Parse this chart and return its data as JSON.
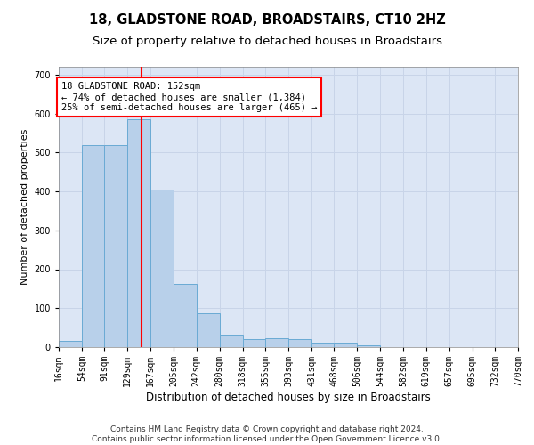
{
  "title": "18, GLADSTONE ROAD, BROADSTAIRS, CT10 2HZ",
  "subtitle": "Size of property relative to detached houses in Broadstairs",
  "xlabel": "Distribution of detached houses by size in Broadstairs",
  "ylabel": "Number of detached properties",
  "bin_edges": [
    16,
    54,
    91,
    129,
    167,
    205,
    242,
    280,
    318,
    355,
    393,
    431,
    468,
    506,
    544,
    582,
    619,
    657,
    695,
    732,
    770
  ],
  "bin_heights": [
    15,
    520,
    520,
    585,
    405,
    163,
    87,
    32,
    20,
    22,
    20,
    12,
    12,
    5,
    0,
    0,
    0,
    0,
    0,
    0
  ],
  "bar_color": "#b8d0ea",
  "bar_edge_color": "#6aaad4",
  "bar_edge_width": 0.7,
  "property_size": 152,
  "property_line_color": "red",
  "annotation_text": "18 GLADSTONE ROAD: 152sqm\n← 74% of detached houses are smaller (1,384)\n25% of semi-detached houses are larger (465) →",
  "annotation_box_color": "white",
  "annotation_box_edge_color": "red",
  "ylim": [
    0,
    720
  ],
  "yticks": [
    0,
    100,
    200,
    300,
    400,
    500,
    600,
    700
  ],
  "grid_color": "#c8d4e8",
  "background_color": "#dce6f5",
  "tick_labels": [
    "16sqm",
    "54sqm",
    "91sqm",
    "129sqm",
    "167sqm",
    "205sqm",
    "242sqm",
    "280sqm",
    "318sqm",
    "355sqm",
    "393sqm",
    "431sqm",
    "468sqm",
    "506sqm",
    "544sqm",
    "582sqm",
    "619sqm",
    "657sqm",
    "695sqm",
    "732sqm",
    "770sqm"
  ],
  "footer_text": "Contains HM Land Registry data © Crown copyright and database right 2024.\nContains public sector information licensed under the Open Government Licence v3.0.",
  "title_fontsize": 10.5,
  "subtitle_fontsize": 9.5,
  "xlabel_fontsize": 8.5,
  "ylabel_fontsize": 8,
  "tick_fontsize": 7,
  "footer_fontsize": 6.5,
  "annot_fontsize": 7.5
}
